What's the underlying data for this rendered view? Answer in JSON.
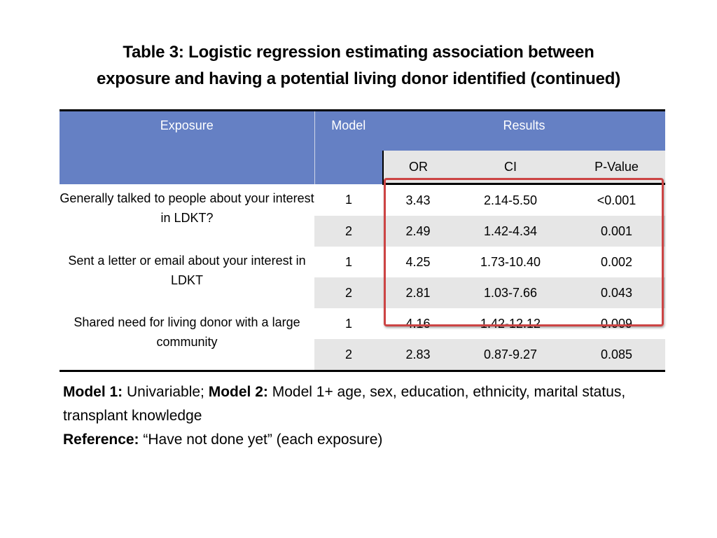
{
  "title_line1": "Table 3: Logistic regression estimating association between",
  "title_line2": "exposure and having a potential living donor identified (continued)",
  "headers": {
    "exposure": "Exposure",
    "model": "Model",
    "results": "Results",
    "or": "OR",
    "ci": "CI",
    "pvalue": "P-Value"
  },
  "groups": [
    {
      "exposure": "Generally talked to people about your interest in LDKT?",
      "rows": [
        {
          "model": "1",
          "or": "3.43",
          "ci": "2.14-5.50",
          "p": "<0.001"
        },
        {
          "model": "2",
          "or": "2.49",
          "ci": "1.42-4.34",
          "p": "0.001"
        }
      ]
    },
    {
      "exposure": "Sent a letter or email about your interest in LDKT",
      "rows": [
        {
          "model": "1",
          "or": "4.25",
          "ci": "1.73-10.40",
          "p": "0.002"
        },
        {
          "model": "2",
          "or": "2.81",
          "ci": "1.03-7.66",
          "p": "0.043"
        }
      ]
    },
    {
      "exposure": "Shared need for living donor with a large community",
      "rows": [
        {
          "model": "1",
          "or": "4.16",
          "ci": "1.42-12.12",
          "p": "0.009"
        },
        {
          "model": "2",
          "or": "2.83",
          "ci": "0.87-9.27",
          "p": "0.085"
        }
      ]
    }
  ],
  "notes": {
    "model1_label": "Model 1:",
    "model1_text": " Univariable; ",
    "model2_label": "Model 2:",
    "model2_text": " Model 1+ age, sex, education, ethnicity, marital status, transplant knowledge",
    "reference_label": "Reference:",
    "reference_text": " “Have not done yet” (each exposure)"
  },
  "colors": {
    "header_blue": "#6580c4",
    "row_shade": "#e6e6e6",
    "highlight_red": "#cc4444"
  }
}
